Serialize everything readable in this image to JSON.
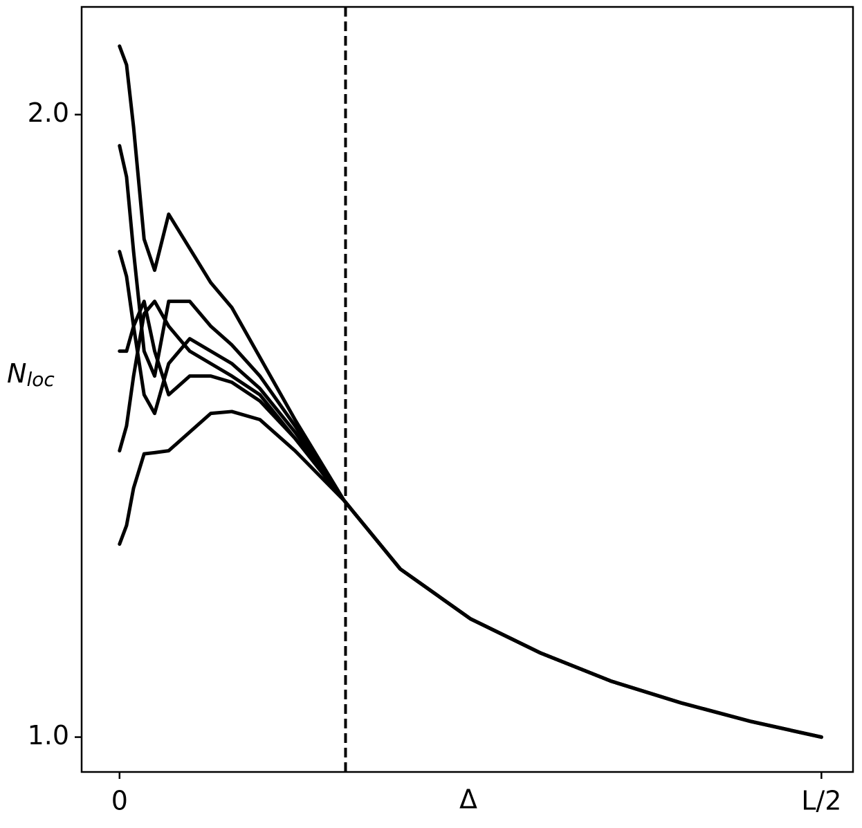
{
  "chart_data": {
    "type": "line",
    "xlabel": "Δ",
    "ylabel": {
      "text": "N",
      "subscript": "loc"
    },
    "x": [
      0,
      0.01,
      0.02,
      0.035,
      0.05,
      0.07,
      0.1,
      0.13,
      0.16,
      0.2,
      0.25,
      0.32,
      0.4,
      0.5,
      0.6,
      0.7,
      0.8,
      0.9,
      1.0
    ],
    "series": [
      {
        "color": "#000000",
        "values": [
          2.11,
          2.08,
          1.98,
          1.8,
          1.75,
          1.84,
          1.785,
          1.73,
          1.69,
          1.61,
          1.51,
          1.38,
          1.27,
          1.19,
          1.135,
          1.09,
          1.055,
          1.025,
          1.0
        ]
      },
      {
        "color": "#000000",
        "values": [
          1.95,
          1.9,
          1.78,
          1.62,
          1.58,
          1.7,
          1.7,
          1.66,
          1.63,
          1.58,
          1.5,
          1.38,
          1.27,
          1.19,
          1.135,
          1.09,
          1.055,
          1.025,
          1.0
        ]
      },
      {
        "color": "#000000",
        "values": [
          1.78,
          1.74,
          1.66,
          1.55,
          1.52,
          1.6,
          1.64,
          1.62,
          1.6,
          1.56,
          1.49,
          1.38,
          1.27,
          1.19,
          1.135,
          1.09,
          1.055,
          1.025,
          1.0
        ]
      },
      {
        "color": "#000000",
        "values": [
          1.62,
          1.62,
          1.66,
          1.7,
          1.62,
          1.55,
          1.58,
          1.58,
          1.57,
          1.54,
          1.48,
          1.38,
          1.27,
          1.19,
          1.135,
          1.09,
          1.055,
          1.025,
          1.0
        ]
      },
      {
        "color": "#000000",
        "values": [
          1.46,
          1.5,
          1.58,
          1.68,
          1.7,
          1.66,
          1.62,
          1.6,
          1.58,
          1.55,
          1.48,
          1.38,
          1.27,
          1.19,
          1.135,
          1.09,
          1.055,
          1.025,
          1.0
        ]
      },
      {
        "color": "#000000",
        "values": [
          1.31,
          1.34,
          1.4,
          1.455,
          1.457,
          1.46,
          1.49,
          1.52,
          1.523,
          1.51,
          1.46,
          1.38,
          1.27,
          1.19,
          1.135,
          1.09,
          1.055,
          1.025,
          1.0
        ]
      }
    ],
    "vline": 0.322,
    "xlim": [
      -0.054,
      1.045
    ],
    "ylim": [
      0.944,
      2.173
    ],
    "xticks": [
      0,
      {
        "value": 1,
        "label": "L/2"
      }
    ],
    "yticks": [
      {
        "value": 1,
        "label": "1.0"
      },
      {
        "value": 2,
        "label": "2.0"
      }
    ],
    "grid": false
  }
}
